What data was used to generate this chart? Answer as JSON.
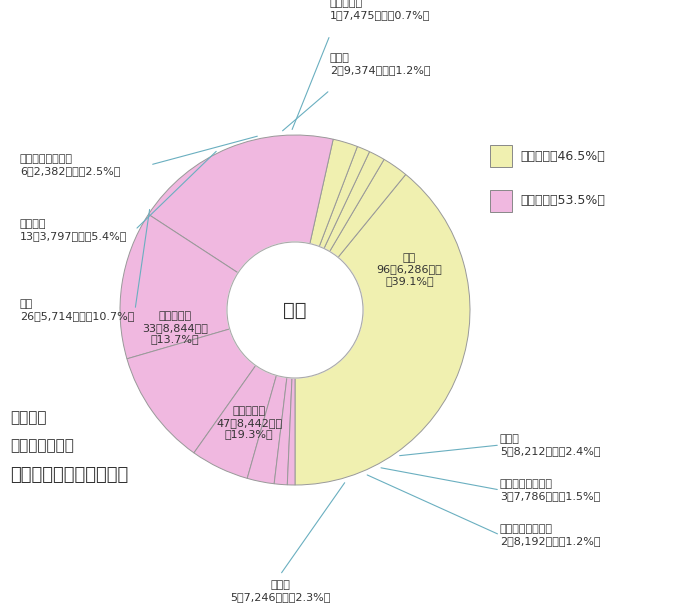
{
  "title_text": "歳入",
  "bottom_left_lines": [
    "一般会計",
    "「歳入」決算額",
    "２４７億３，７５０万円"
  ],
  "legend_items": [
    {
      "label": "自主財源（46.5%）",
      "color": "#f0f0b0"
    },
    {
      "label": "依存財源（53.5%）",
      "color": "#f0b8e0"
    }
  ],
  "slices": [
    {
      "label": "市税",
      "detail": "96億6,286万円\n（39.1%）",
      "value": 39.1,
      "color": "#f0f0b0"
    },
    {
      "label": "繰入金",
      "detail": "5億8,212万円（2.4%）",
      "value": 2.4,
      "color": "#f0f0b0"
    },
    {
      "label": "使用料及び手数料",
      "detail": "3億7,786万円（1.5%）",
      "value": 1.5,
      "color": "#f0f0b0"
    },
    {
      "label": "分担金及び負担金",
      "detail": "2億8,192万円（1.2%）",
      "value": 1.2,
      "color": "#f0f0b0"
    },
    {
      "label": "その他",
      "detail": "5億7,246万円（2.3%）",
      "value": 2.3,
      "color": "#f0f0b0"
    },
    {
      "label": "国庫支出金",
      "detail": "47億8,442万円\n（19.3%）",
      "value": 19.3,
      "color": "#f0b8e0"
    },
    {
      "label": "地方交付税",
      "detail": "33億8,844万円\n（13.7%）",
      "value": 13.7,
      "color": "#f0b8e0"
    },
    {
      "label": "市債",
      "detail": "26億5,714万円（10.7%）",
      "value": 10.7,
      "color": "#f0b8e0"
    },
    {
      "label": "府支出金",
      "detail": "13億3,797万円（5.4%）",
      "value": 5.4,
      "color": "#f0b8e0"
    },
    {
      "label": "地方消費税交付金",
      "detail": "6億2,382万円（2.5%）",
      "value": 2.5,
      "color": "#f0b8e0"
    },
    {
      "label": "その他",
      "detail": "2億9,374万円（1.2%）",
      "value": 1.2,
      "color": "#f0b8e0"
    },
    {
      "label": "地方譲与税",
      "detail": "1億7,475万円（0.7%）",
      "value": 0.7,
      "color": "#f0b8e0"
    }
  ],
  "bg_color": "#ffffff",
  "line_color": "#6aafc0",
  "text_color": "#333333",
  "edge_color": "#999999"
}
